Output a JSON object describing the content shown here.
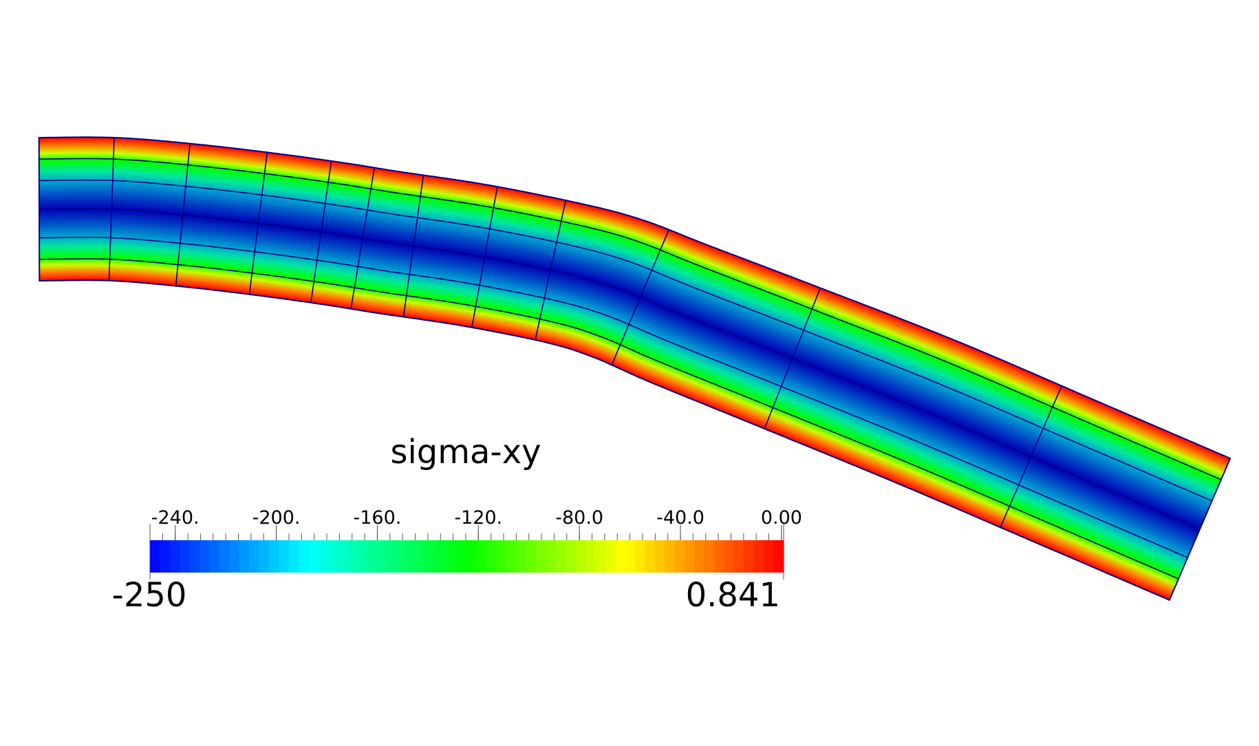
{
  "legend": {
    "title": "sigma-xy",
    "range_min_label": "-250",
    "range_max_label": "0.841",
    "range_min": -250,
    "range_max": 0.841,
    "ticks": [
      {
        "label": "-240.",
        "value": -240
      },
      {
        "label": "-200.",
        "value": -200
      },
      {
        "label": "-160.",
        "value": -160
      },
      {
        "label": "-120.",
        "value": -120
      },
      {
        "label": "-80.0",
        "value": -80
      },
      {
        "label": "-40.0",
        "value": -40
      },
      {
        "label": "0.00",
        "value": 0
      }
    ],
    "colormap": [
      "#0000ff",
      "#00ffff",
      "#00ff00",
      "#ffff00",
      "#ff0000"
    ],
    "color_bands": 64
  },
  "mesh": {
    "line_color": "#000080",
    "elements_along_length": 10,
    "elements_through_thickness": 2,
    "field_profile": "parabolic"
  }
}
